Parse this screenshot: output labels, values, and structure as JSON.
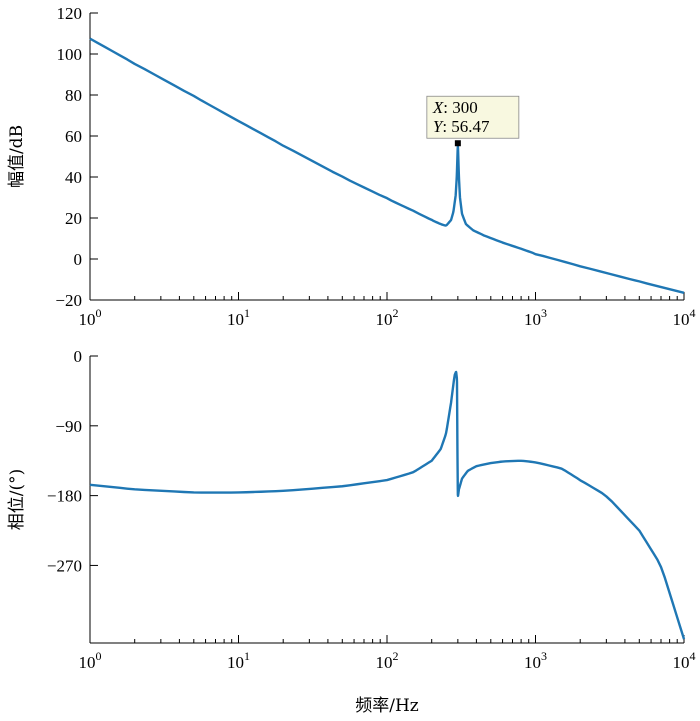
{
  "chart_data": [
    {
      "type": "line",
      "xscale": "log",
      "xlim": [
        1,
        10000
      ],
      "ylim": [
        -20,
        120
      ],
      "ylabel": "幅值/dB",
      "xlabel": "",
      "yticks": [
        -20,
        0,
        20,
        40,
        60,
        80,
        100,
        120
      ],
      "ytick_labels": [
        "−20",
        "0",
        "20",
        "40",
        "60",
        "80",
        "100",
        "120"
      ],
      "xtick_exponents": [
        "0",
        "1",
        "2",
        "3",
        "4"
      ],
      "grid": false,
      "color": "#1f77b4",
      "series": [
        {
          "x": [
            1,
            2,
            5,
            10,
            20,
            50,
            100,
            150,
            200,
            230,
            250,
            270,
            280,
            290,
            295,
            300,
            305,
            310,
            320,
            340,
            380,
            450,
            600,
            800,
            1000,
            2000,
            5000,
            10000
          ],
          "y": [
            107.5,
            95.3,
            79.4,
            67.3,
            55.4,
            40,
            29.5,
            23.5,
            19,
            17,
            16.2,
            19,
            23,
            31,
            40,
            56.47,
            40,
            30,
            22,
            17,
            14,
            11.5,
            8,
            5,
            2.5,
            -3.5,
            -11,
            -16.5
          ]
        }
      ],
      "annotation": {
        "x_label": "X",
        "x_value": ": 300",
        "y_label": "Y",
        "y_value": ": 56.47",
        "x": 300,
        "y": 56.47
      }
    },
    {
      "type": "line",
      "xscale": "log",
      "xlim": [
        1,
        10000
      ],
      "ylim": [
        -370,
        0
      ],
      "ylabel": "相位/(°)",
      "xlabel": "频率/Hz",
      "yticks": [
        0,
        -90,
        -180,
        -270
      ],
      "ytick_labels": [
        "0",
        "−90",
        "−180",
        "−270"
      ],
      "xtick_exponents": [
        "0",
        "1",
        "2",
        "3",
        "4"
      ],
      "grid": false,
      "color": "#1f77b4",
      "series": [
        {
          "x": [
            1,
            2,
            5,
            10,
            20,
            50,
            100,
            150,
            200,
            230,
            250,
            270,
            285,
            292,
            296,
            298,
            300,
            305,
            320,
            350,
            400,
            500,
            600,
            800,
            1000,
            1500,
            2000,
            3000,
            5000,
            7000,
            10000
          ],
          "y": [
            -166,
            -172,
            -176,
            -176,
            -174,
            -168,
            -160,
            -150,
            -135,
            -120,
            -100,
            -60,
            -25,
            -20,
            -30,
            -120,
            -182,
            -172,
            -158,
            -148,
            -142,
            -138,
            -136,
            -135,
            -137,
            -145,
            -160,
            -180,
            -225,
            -270,
            -365
          ]
        }
      ]
    }
  ]
}
